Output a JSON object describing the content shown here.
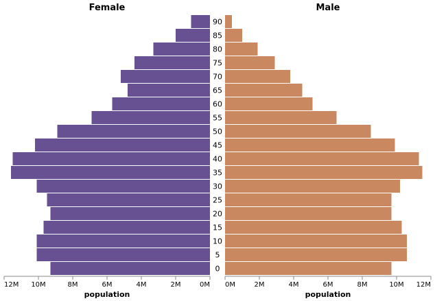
{
  "chart_data": {
    "type": "bar",
    "layout": "population-pyramid",
    "categories": [
      "90",
      "85",
      "80",
      "75",
      "70",
      "65",
      "60",
      "55",
      "50",
      "45",
      "40",
      "35",
      "30",
      "25",
      "20",
      "15",
      "10",
      "5",
      "0"
    ],
    "series": [
      {
        "name": "Female",
        "color": "#675193",
        "values": [
          1100000,
          2000000,
          3300000,
          4400000,
          5200000,
          4800000,
          5700000,
          6900000,
          8900000,
          10200000,
          11500000,
          11600000,
          10100000,
          9500000,
          9300000,
          9700000,
          10100000,
          10100000,
          9300000
        ]
      },
      {
        "name": "Male",
        "color": "#ca8861",
        "values": [
          400000,
          1000000,
          1900000,
          2900000,
          3800000,
          4500000,
          5100000,
          6500000,
          8500000,
          9900000,
          11300000,
          11500000,
          10200000,
          9700000,
          9700000,
          10300000,
          10600000,
          10600000,
          9700000
        ]
      }
    ],
    "panel_titles": [
      "Female",
      "Male"
    ],
    "xlabel": "population",
    "ylabel": "",
    "female_xlim": [
      12000000,
      0
    ],
    "male_xlim": [
      0,
      12000000
    ],
    "female_ticks": [
      "12M",
      "10M",
      "8M",
      "6M",
      "4M",
      "2M",
      "0M"
    ],
    "male_ticks": [
      "0M",
      "2M",
      "4M",
      "6M",
      "8M",
      "10M",
      "12M"
    ],
    "grid": false,
    "legend": "none"
  }
}
